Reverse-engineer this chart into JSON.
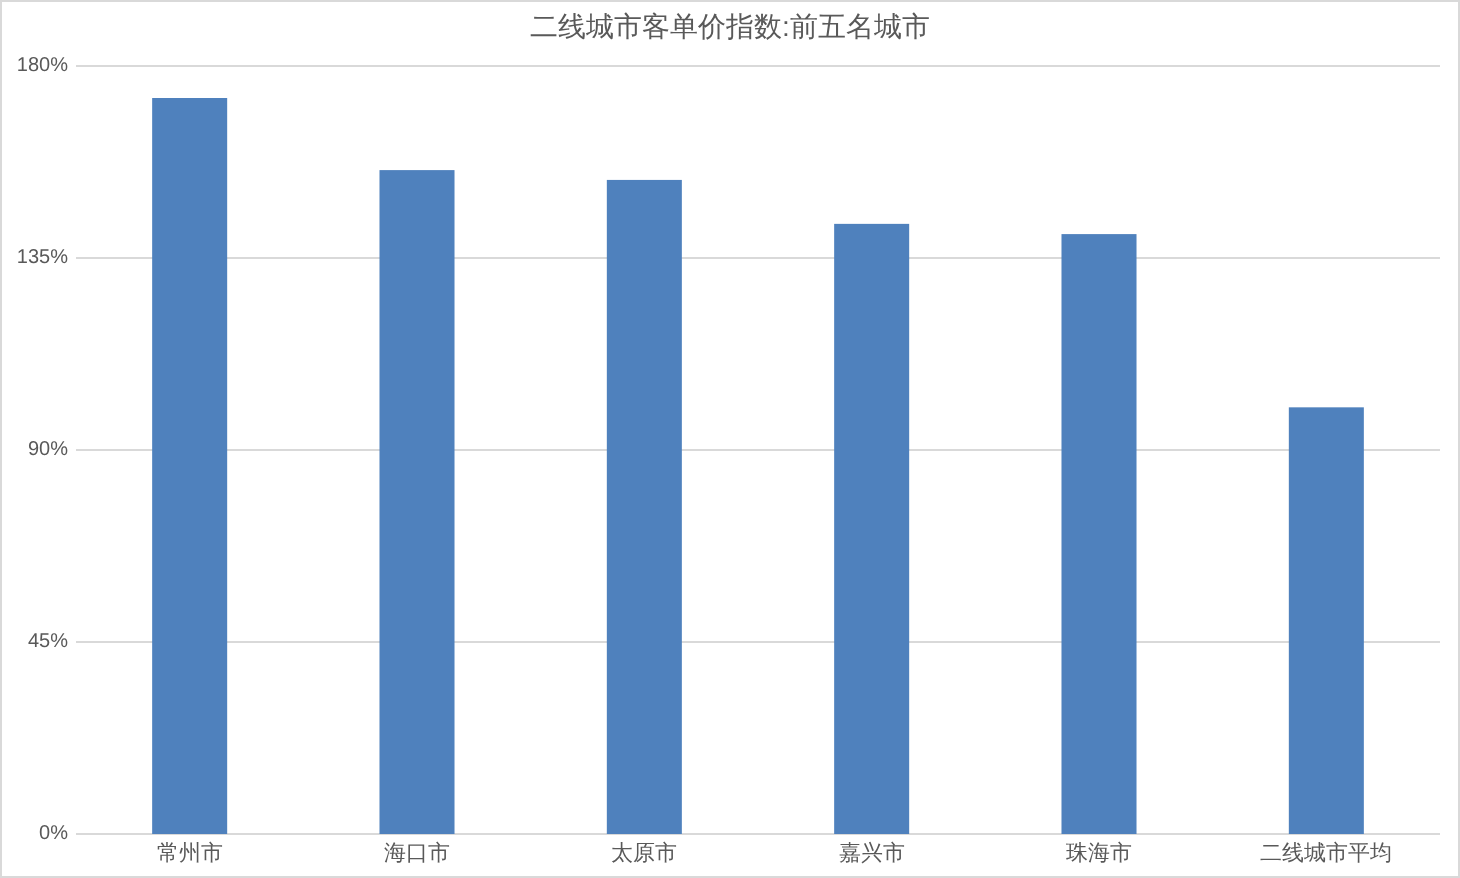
{
  "chart_data": {
    "type": "bar",
    "title": "二线城市客单价指数:前五名城市",
    "categories": [
      "常州市",
      "海口市",
      "太原市",
      "嘉兴市",
      "珠海市",
      "二线城市平均"
    ],
    "values": [
      172.5,
      155.6,
      153.3,
      143,
      140.6,
      100
    ],
    "color": "#4f81bd",
    "ylim": [
      0,
      180
    ],
    "yticks": [
      {
        "value": 0,
        "label": "0%"
      },
      {
        "value": 45,
        "label": "45%"
      },
      {
        "value": 90,
        "label": "90%"
      },
      {
        "value": 135,
        "label": "135%"
      },
      {
        "value": 180,
        "label": "180%"
      }
    ],
    "grid": "y"
  }
}
